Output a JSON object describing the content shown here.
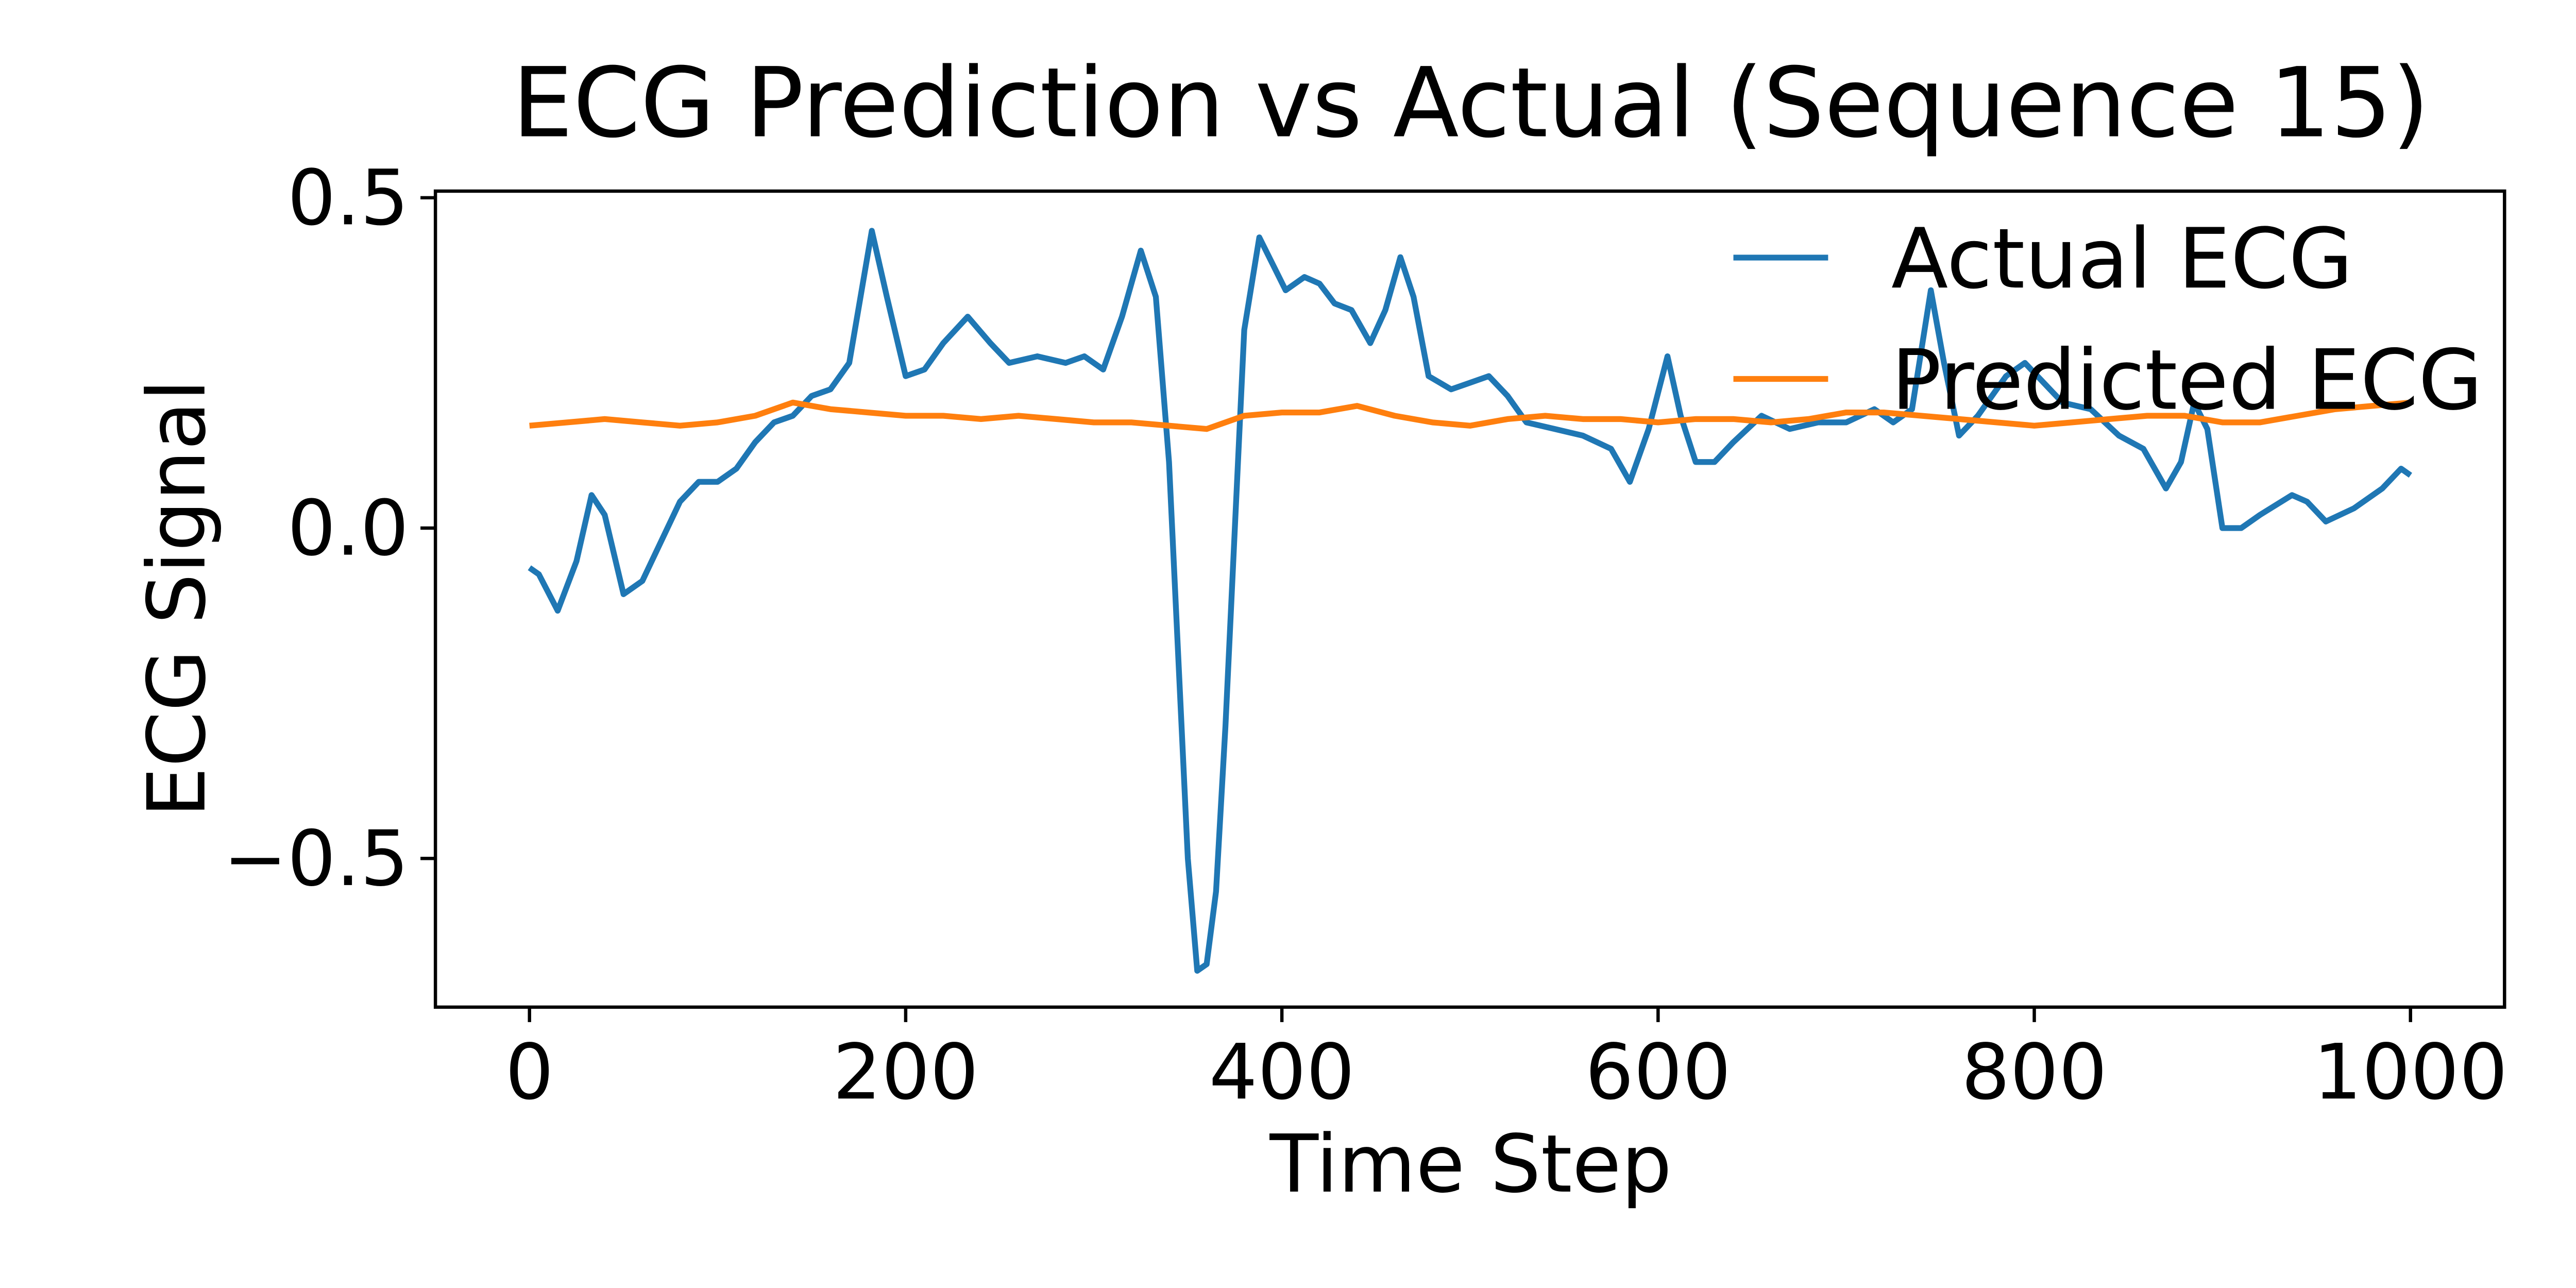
{
  "chart_data": {
    "type": "line",
    "title": "ECG Prediction vs Actual (Sequence 15)",
    "x_label": "Time Step",
    "y_label": "ECG Signal",
    "xlim": [
      -50,
      1050
    ],
    "ylim": [
      -0.725,
      0.51
    ],
    "xticks": [
      0,
      200,
      400,
      600,
      800,
      1000
    ],
    "yticks": [
      {
        "value": -0.5,
        "label": "−0.5"
      },
      {
        "value": 0,
        "label": "0.0"
      },
      0.5
    ],
    "grid": false,
    "legend": "upper right",
    "series": [
      {
        "name": "Actual ECG",
        "color": "#1f77b4",
        "x": [
          0,
          5,
          15,
          25,
          33,
          40,
          50,
          60,
          70,
          80,
          90,
          100,
          110,
          120,
          130,
          140,
          150,
          160,
          170,
          182,
          190,
          200,
          210,
          220,
          233,
          245,
          255,
          270,
          285,
          295,
          305,
          315,
          325,
          333,
          340,
          345,
          350,
          355,
          360,
          365,
          370,
          375,
          380,
          388,
          395,
          402,
          412,
          420,
          428,
          437,
          447,
          455,
          463,
          470,
          478,
          490,
          500,
          510,
          520,
          530,
          545,
          560,
          575,
          585,
          595,
          605,
          612,
          620,
          630,
          640,
          655,
          670,
          685,
          700,
          715,
          725,
          735,
          745,
          752,
          760,
          770,
          785,
          795,
          805,
          815,
          830,
          845,
          858,
          870,
          878,
          885,
          892,
          900,
          910,
          920,
          937,
          945,
          955,
          970,
          985,
          995,
          1000
        ],
        "values": [
          -0.06,
          -0.07,
          -0.125,
          -0.05,
          0.05,
          0.02,
          -0.1,
          -0.08,
          -0.02,
          0.04,
          0.07,
          0.07,
          0.09,
          0.13,
          0.16,
          0.17,
          0.2,
          0.21,
          0.25,
          0.45,
          0.35,
          0.23,
          0.24,
          0.28,
          0.32,
          0.28,
          0.25,
          0.26,
          0.25,
          0.26,
          0.24,
          0.32,
          0.42,
          0.35,
          0.1,
          -0.2,
          -0.5,
          -0.67,
          -0.66,
          -0.55,
          -0.3,
          0.0,
          0.3,
          0.44,
          0.4,
          0.36,
          0.38,
          0.37,
          0.34,
          0.33,
          0.28,
          0.33,
          0.41,
          0.35,
          0.23,
          0.21,
          0.22,
          0.23,
          0.2,
          0.16,
          0.15,
          0.14,
          0.12,
          0.07,
          0.15,
          0.26,
          0.17,
          0.1,
          0.1,
          0.13,
          0.17,
          0.15,
          0.16,
          0.16,
          0.18,
          0.16,
          0.18,
          0.36,
          0.25,
          0.14,
          0.17,
          0.23,
          0.25,
          0.22,
          0.19,
          0.18,
          0.14,
          0.12,
          0.06,
          0.1,
          0.19,
          0.15,
          0.0,
          0.0,
          0.02,
          0.05,
          0.04,
          0.01,
          0.03,
          0.06,
          0.09,
          0.08
        ]
      },
      {
        "name": "Predicted ECG",
        "color": "#ff7f0e",
        "x": [
          0,
          20,
          40,
          60,
          80,
          100,
          120,
          140,
          160,
          180,
          200,
          220,
          240,
          260,
          280,
          300,
          320,
          340,
          360,
          380,
          400,
          420,
          440,
          460,
          480,
          500,
          520,
          540,
          560,
          580,
          600,
          620,
          640,
          660,
          680,
          700,
          720,
          740,
          760,
          780,
          800,
          820,
          840,
          860,
          880,
          900,
          920,
          940,
          960,
          980,
          1000
        ],
        "values": [
          0.155,
          0.16,
          0.165,
          0.16,
          0.155,
          0.16,
          0.17,
          0.19,
          0.18,
          0.175,
          0.17,
          0.17,
          0.165,
          0.17,
          0.165,
          0.16,
          0.16,
          0.155,
          0.15,
          0.17,
          0.175,
          0.175,
          0.185,
          0.17,
          0.16,
          0.155,
          0.165,
          0.17,
          0.165,
          0.165,
          0.16,
          0.165,
          0.165,
          0.16,
          0.165,
          0.175,
          0.175,
          0.17,
          0.165,
          0.16,
          0.155,
          0.16,
          0.165,
          0.17,
          0.17,
          0.16,
          0.16,
          0.17,
          0.18,
          0.185,
          0.19
        ]
      }
    ]
  }
}
